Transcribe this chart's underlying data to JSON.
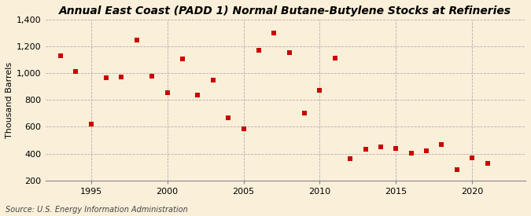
{
  "title": "Annual East Coast (PADD 1) Normal Butane-Butylene Stocks at Refineries",
  "ylabel": "Thousand Barrels",
  "source": "Source: U.S. Energy Information Administration",
  "background_color": "#faefd9",
  "marker_color": "#cc0000",
  "years": [
    1993,
    1994,
    1995,
    1996,
    1997,
    1998,
    1999,
    2000,
    2001,
    2002,
    2003,
    2004,
    2005,
    2006,
    2007,
    2008,
    2009,
    2010,
    2011,
    2012,
    2013,
    2014,
    2015,
    2016,
    2017,
    2018,
    2019,
    2020,
    2021
  ],
  "values": [
    1130,
    1010,
    620,
    965,
    970,
    1245,
    980,
    855,
    1105,
    835,
    950,
    670,
    585,
    1170,
    1300,
    1155,
    705,
    875,
    1110,
    360,
    435,
    450,
    440,
    405,
    420,
    470,
    280,
    370,
    325
  ],
  "xlim": [
    1992.0,
    2023.5
  ],
  "ylim": [
    200,
    1400
  ],
  "yticks": [
    200,
    400,
    600,
    800,
    1000,
    1200,
    1400
  ],
  "xticks": [
    1995,
    2000,
    2005,
    2010,
    2015,
    2020
  ],
  "title_fontsize": 10,
  "ylabel_fontsize": 8,
  "tick_fontsize": 8,
  "source_fontsize": 7,
  "marker_size": 14,
  "grid_color": "#b0b0b0",
  "grid_linestyle": "--",
  "grid_linewidth": 0.6
}
